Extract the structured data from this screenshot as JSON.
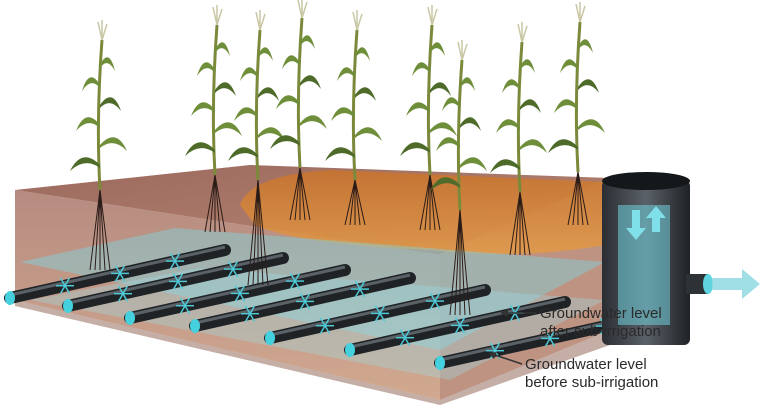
{
  "annotations": [
    {
      "lines": [
        "Groundwater level",
        "after sub-irrigation"
      ]
    },
    {
      "lines": [
        "Groundwater level",
        "before sub-irrigation"
      ]
    }
  ]
}
